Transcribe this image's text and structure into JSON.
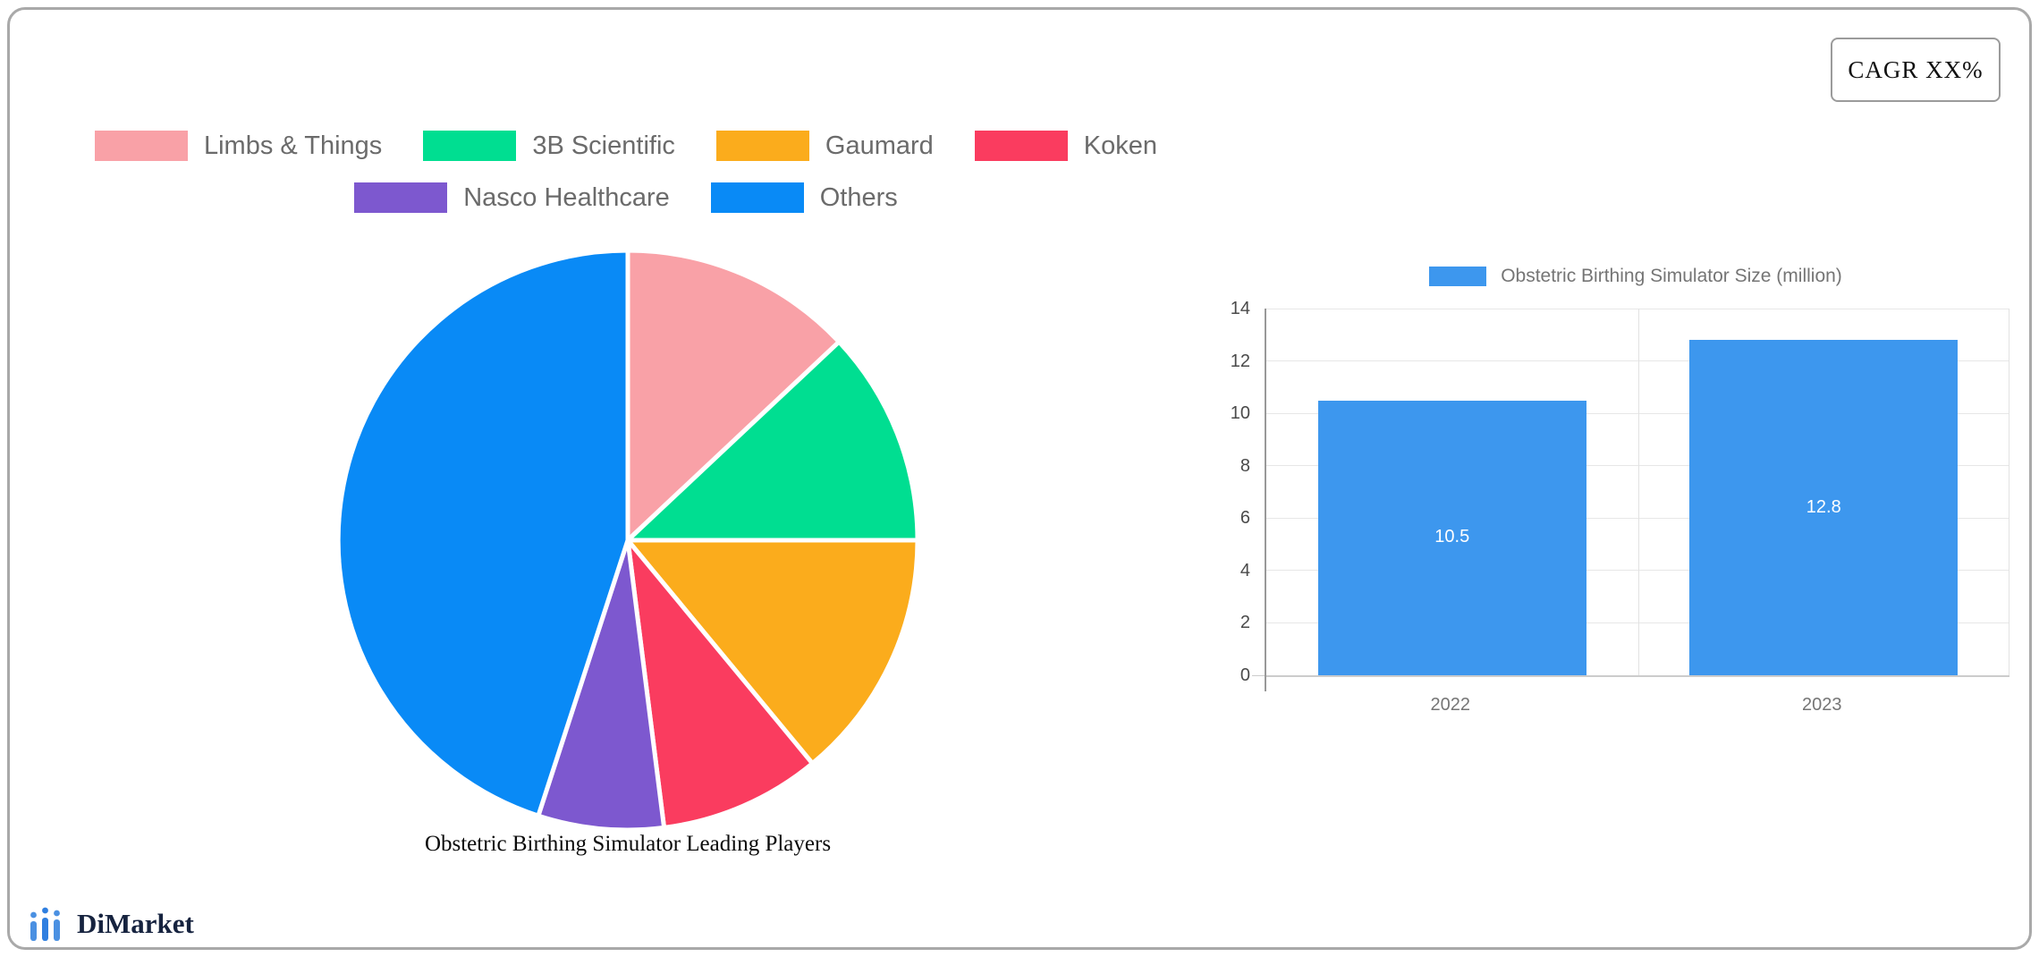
{
  "cagr_box": {
    "label": "CAGR XX%"
  },
  "logo": {
    "text": "DiMarket",
    "icon": "bar-chart-trend-icon",
    "icon_color": "#4a90e2"
  },
  "colors": {
    "bar_blue": "#3d97ee",
    "card_border": "#a9a9a9",
    "legend_text": "#6b6b6b",
    "axis_text": "#4a4a4a",
    "category_text": "#757575"
  },
  "chart_data": [
    {
      "type": "pie",
      "title": "Obstetric Birthing Simulator Leading Players",
      "start_angle": "top",
      "direction": "clockwise",
      "legend_rows": [
        4,
        2
      ],
      "series": [
        {
          "label": "Limbs & Things",
          "value": 13,
          "color": "#f9a1a7"
        },
        {
          "label": "3B Scientific",
          "value": 12,
          "color": "#00de91"
        },
        {
          "label": "Gaumard",
          "value": 14,
          "color": "#fbac1c"
        },
        {
          "label": "Koken",
          "value": 9,
          "color": "#fa3c5f"
        },
        {
          "label": "Nasco Healthcare",
          "value": 7,
          "color": "#7d58cf"
        },
        {
          "label": "Others",
          "value": 45,
          "color": "#098af6"
        }
      ]
    },
    {
      "type": "bar",
      "legend": "Obstetric Birthing Simulator Size (million)",
      "categories": [
        "2022",
        "2023"
      ],
      "values": [
        10.5,
        12.8
      ],
      "value_labels": [
        "10.5",
        "12.8"
      ],
      "bar_color": "#3d97ee",
      "ylim": [
        0,
        14
      ],
      "ytick_step": 2,
      "grid": true,
      "legend_position": "top"
    }
  ]
}
